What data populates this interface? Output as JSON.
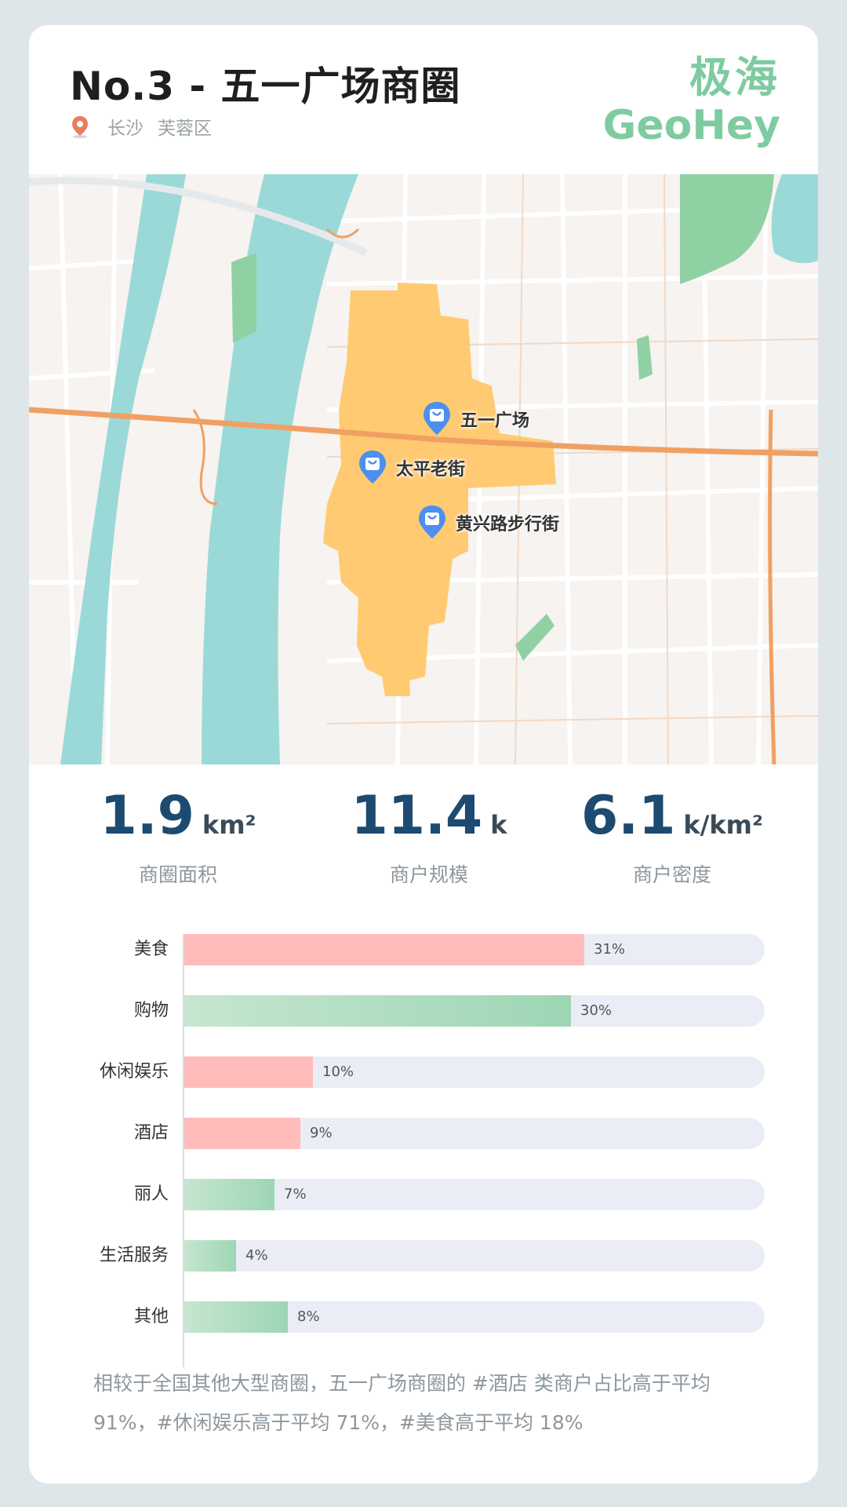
{
  "header": {
    "title": "No.3 -  五一广场商圈",
    "city": "长沙",
    "district": "芙蓉区",
    "logo_cn": "极海",
    "logo_en": "GeoHey"
  },
  "map": {
    "pois": [
      {
        "name": "五一广场"
      },
      {
        "name": "太平老街"
      },
      {
        "name": "黄兴路步行街"
      }
    ],
    "colors": {
      "river": "#9bd9d8",
      "area": "#ffc766",
      "road": "#f0a063",
      "park": "#8fd1a3"
    }
  },
  "stats": [
    {
      "value": "1.9",
      "unit": "km²",
      "caption": "商圈面积"
    },
    {
      "value": "11.4",
      "unit": "k",
      "caption": "商户规模"
    },
    {
      "value": "6.1",
      "unit": "k/km²",
      "caption": "商户密度"
    }
  ],
  "chart_data": {
    "type": "bar",
    "orientation": "horizontal",
    "categories": [
      "美食",
      "购物",
      "休闲娱乐",
      "酒店",
      "丽人",
      "生活服务",
      "其他"
    ],
    "values": [
      31,
      30,
      10,
      9,
      7,
      4,
      8
    ],
    "labels": [
      "31%",
      "30%",
      "10%",
      "9%",
      "7%",
      "4%",
      "8%"
    ],
    "colors": [
      "red",
      "green",
      "red",
      "red",
      "green",
      "green",
      "green"
    ],
    "xlim": [
      0,
      45
    ]
  },
  "note": "相较于全国其他大型商圈，五一广场商圈的 #酒店 类商户占比高于平均 91%，#休闲娱乐高于平均 71%，#美食高于平均 18%"
}
